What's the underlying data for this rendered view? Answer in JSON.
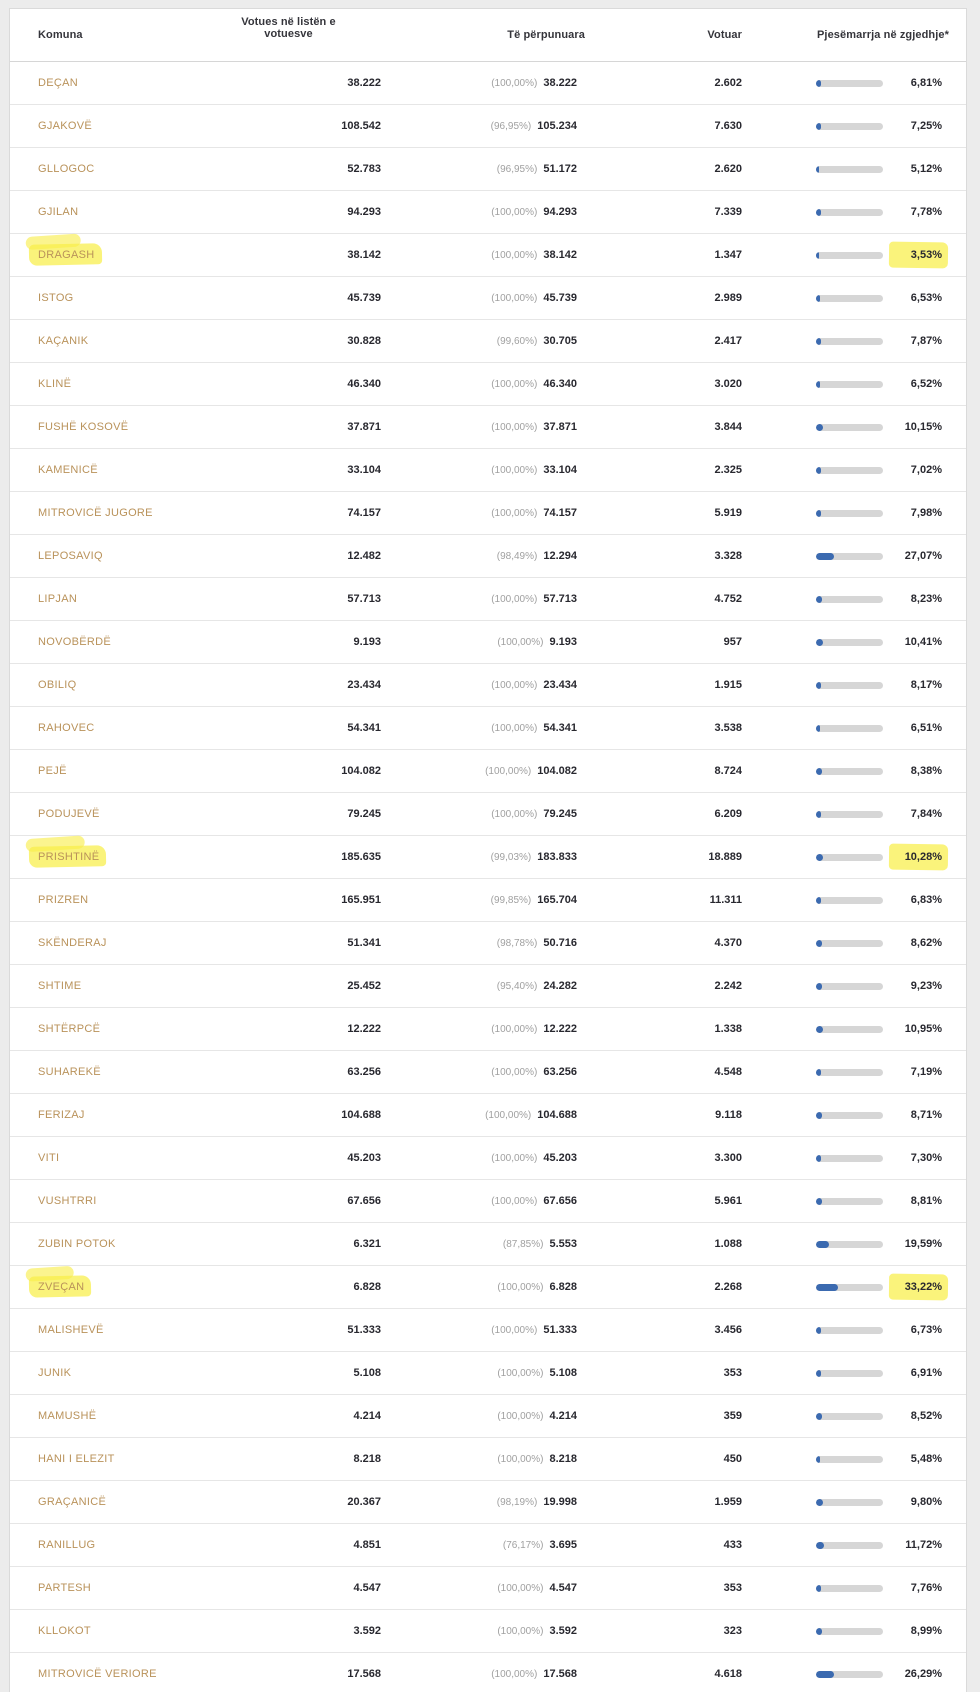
{
  "table": {
    "header": {
      "komuna": "Komuna",
      "votues": "Votues në listën e votuesve",
      "perpunuara": "Të përpunuara",
      "votuar": "Votuar",
      "pjesemarrja": "Pjesëmarrja në zgjedhje*"
    },
    "rows": [
      {
        "komuna": "DEÇAN",
        "votues": "38.222",
        "perpunuara_pct": "(100,00%)",
        "perpunuara": "38.222",
        "votuar": "2.602",
        "pjesemarrja": "6,81%",
        "pjesemarrja_value": 6.81,
        "highlight": false
      },
      {
        "komuna": "GJAKOVË",
        "votues": "108.542",
        "perpunuara_pct": "(96,95%)",
        "perpunuara": "105.234",
        "votuar": "7.630",
        "pjesemarrja": "7,25%",
        "pjesemarrja_value": 7.25,
        "highlight": false
      },
      {
        "komuna": "GLLOGOC",
        "votues": "52.783",
        "perpunuara_pct": "(96,95%)",
        "perpunuara": "51.172",
        "votuar": "2.620",
        "pjesemarrja": "5,12%",
        "pjesemarrja_value": 5.12,
        "highlight": false
      },
      {
        "komuna": "GJILAN",
        "votues": "94.293",
        "perpunuara_pct": "(100,00%)",
        "perpunuara": "94.293",
        "votuar": "7.339",
        "pjesemarrja": "7,78%",
        "pjesemarrja_value": 7.78,
        "highlight": false
      },
      {
        "komuna": "DRAGASH",
        "votues": "38.142",
        "perpunuara_pct": "(100,00%)",
        "perpunuara": "38.142",
        "votuar": "1.347",
        "pjesemarrja": "3,53%",
        "pjesemarrja_value": 3.53,
        "highlight": true
      },
      {
        "komuna": "ISTOG",
        "votues": "45.739",
        "perpunuara_pct": "(100,00%)",
        "perpunuara": "45.739",
        "votuar": "2.989",
        "pjesemarrja": "6,53%",
        "pjesemarrja_value": 6.53,
        "highlight": false
      },
      {
        "komuna": "KAÇANIK",
        "votues": "30.828",
        "perpunuara_pct": "(99,60%)",
        "perpunuara": "30.705",
        "votuar": "2.417",
        "pjesemarrja": "7,87%",
        "pjesemarrja_value": 7.87,
        "highlight": false
      },
      {
        "komuna": "KLINË",
        "votues": "46.340",
        "perpunuara_pct": "(100,00%)",
        "perpunuara": "46.340",
        "votuar": "3.020",
        "pjesemarrja": "6,52%",
        "pjesemarrja_value": 6.52,
        "highlight": false
      },
      {
        "komuna": "FUSHË KOSOVË",
        "votues": "37.871",
        "perpunuara_pct": "(100,00%)",
        "perpunuara": "37.871",
        "votuar": "3.844",
        "pjesemarrja": "10,15%",
        "pjesemarrja_value": 10.15,
        "highlight": false
      },
      {
        "komuna": "KAMENICË",
        "votues": "33.104",
        "perpunuara_pct": "(100,00%)",
        "perpunuara": "33.104",
        "votuar": "2.325",
        "pjesemarrja": "7,02%",
        "pjesemarrja_value": 7.02,
        "highlight": false
      },
      {
        "komuna": "MITROVICË JUGORE",
        "votues": "74.157",
        "perpunuara_pct": "(100,00%)",
        "perpunuara": "74.157",
        "votuar": "5.919",
        "pjesemarrja": "7,98%",
        "pjesemarrja_value": 7.98,
        "highlight": false
      },
      {
        "komuna": "LEPOSAVIQ",
        "votues": "12.482",
        "perpunuara_pct": "(98,49%)",
        "perpunuara": "12.294",
        "votuar": "3.328",
        "pjesemarrja": "27,07%",
        "pjesemarrja_value": 27.07,
        "highlight": false
      },
      {
        "komuna": "LIPJAN",
        "votues": "57.713",
        "perpunuara_pct": "(100,00%)",
        "perpunuara": "57.713",
        "votuar": "4.752",
        "pjesemarrja": "8,23%",
        "pjesemarrja_value": 8.23,
        "highlight": false
      },
      {
        "komuna": "NOVOBËRDË",
        "votues": "9.193",
        "perpunuara_pct": "(100,00%)",
        "perpunuara": "9.193",
        "votuar": "957",
        "pjesemarrja": "10,41%",
        "pjesemarrja_value": 10.41,
        "highlight": false
      },
      {
        "komuna": "OBILIQ",
        "votues": "23.434",
        "perpunuara_pct": "(100,00%)",
        "perpunuara": "23.434",
        "votuar": "1.915",
        "pjesemarrja": "8,17%",
        "pjesemarrja_value": 8.17,
        "highlight": false
      },
      {
        "komuna": "RAHOVEC",
        "votues": "54.341",
        "perpunuara_pct": "(100,00%)",
        "perpunuara": "54.341",
        "votuar": "3.538",
        "pjesemarrja": "6,51%",
        "pjesemarrja_value": 6.51,
        "highlight": false
      },
      {
        "komuna": "PEJË",
        "votues": "104.082",
        "perpunuara_pct": "(100,00%)",
        "perpunuara": "104.082",
        "votuar": "8.724",
        "pjesemarrja": "8,38%",
        "pjesemarrja_value": 8.38,
        "highlight": false
      },
      {
        "komuna": "PODUJEVË",
        "votues": "79.245",
        "perpunuara_pct": "(100,00%)",
        "perpunuara": "79.245",
        "votuar": "6.209",
        "pjesemarrja": "7,84%",
        "pjesemarrja_value": 7.84,
        "highlight": false
      },
      {
        "komuna": "PRISHTINË",
        "votues": "185.635",
        "perpunuara_pct": "(99,03%)",
        "perpunuara": "183.833",
        "votuar": "18.889",
        "pjesemarrja": "10,28%",
        "pjesemarrja_value": 10.28,
        "highlight": true
      },
      {
        "komuna": "PRIZREN",
        "votues": "165.951",
        "perpunuara_pct": "(99,85%)",
        "perpunuara": "165.704",
        "votuar": "11.311",
        "pjesemarrja": "6,83%",
        "pjesemarrja_value": 6.83,
        "highlight": false
      },
      {
        "komuna": "SKËNDERAJ",
        "votues": "51.341",
        "perpunuara_pct": "(98,78%)",
        "perpunuara": "50.716",
        "votuar": "4.370",
        "pjesemarrja": "8,62%",
        "pjesemarrja_value": 8.62,
        "highlight": false
      },
      {
        "komuna": "SHTIME",
        "votues": "25.452",
        "perpunuara_pct": "(95,40%)",
        "perpunuara": "24.282",
        "votuar": "2.242",
        "pjesemarrja": "9,23%",
        "pjesemarrja_value": 9.23,
        "highlight": false
      },
      {
        "komuna": "SHTËRPCË",
        "votues": "12.222",
        "perpunuara_pct": "(100,00%)",
        "perpunuara": "12.222",
        "votuar": "1.338",
        "pjesemarrja": "10,95%",
        "pjesemarrja_value": 10.95,
        "highlight": false
      },
      {
        "komuna": "SUHAREKË",
        "votues": "63.256",
        "perpunuara_pct": "(100,00%)",
        "perpunuara": "63.256",
        "votuar": "4.548",
        "pjesemarrja": "7,19%",
        "pjesemarrja_value": 7.19,
        "highlight": false
      },
      {
        "komuna": "FERIZAJ",
        "votues": "104.688",
        "perpunuara_pct": "(100,00%)",
        "perpunuara": "104.688",
        "votuar": "9.118",
        "pjesemarrja": "8,71%",
        "pjesemarrja_value": 8.71,
        "highlight": false
      },
      {
        "komuna": "VITI",
        "votues": "45.203",
        "perpunuara_pct": "(100,00%)",
        "perpunuara": "45.203",
        "votuar": "3.300",
        "pjesemarrja": "7,30%",
        "pjesemarrja_value": 7.3,
        "highlight": false
      },
      {
        "komuna": "VUSHTRRI",
        "votues": "67.656",
        "perpunuara_pct": "(100,00%)",
        "perpunuara": "67.656",
        "votuar": "5.961",
        "pjesemarrja": "8,81%",
        "pjesemarrja_value": 8.81,
        "highlight": false
      },
      {
        "komuna": "ZUBIN POTOK",
        "votues": "6.321",
        "perpunuara_pct": "(87,85%)",
        "perpunuara": "5.553",
        "votuar": "1.088",
        "pjesemarrja": "19,59%",
        "pjesemarrja_value": 19.59,
        "highlight": false
      },
      {
        "komuna": "ZVEÇAN",
        "votues": "6.828",
        "perpunuara_pct": "(100,00%)",
        "perpunuara": "6.828",
        "votuar": "2.268",
        "pjesemarrja": "33,22%",
        "pjesemarrja_value": 33.22,
        "highlight": true
      },
      {
        "komuna": "MALISHEVË",
        "votues": "51.333",
        "perpunuara_pct": "(100,00%)",
        "perpunuara": "51.333",
        "votuar": "3.456",
        "pjesemarrja": "6,73%",
        "pjesemarrja_value": 6.73,
        "highlight": false
      },
      {
        "komuna": "JUNIK",
        "votues": "5.108",
        "perpunuara_pct": "(100,00%)",
        "perpunuara": "5.108",
        "votuar": "353",
        "pjesemarrja": "6,91%",
        "pjesemarrja_value": 6.91,
        "highlight": false
      },
      {
        "komuna": "MAMUSHË",
        "votues": "4.214",
        "perpunuara_pct": "(100,00%)",
        "perpunuara": "4.214",
        "votuar": "359",
        "pjesemarrja": "8,52%",
        "pjesemarrja_value": 8.52,
        "highlight": false
      },
      {
        "komuna": "HANI I ELEZIT",
        "votues": "8.218",
        "perpunuara_pct": "(100,00%)",
        "perpunuara": "8.218",
        "votuar": "450",
        "pjesemarrja": "5,48%",
        "pjesemarrja_value": 5.48,
        "highlight": false
      },
      {
        "komuna": "GRAÇANICË",
        "votues": "20.367",
        "perpunuara_pct": "(98,19%)",
        "perpunuara": "19.998",
        "votuar": "1.959",
        "pjesemarrja": "9,80%",
        "pjesemarrja_value": 9.8,
        "highlight": false
      },
      {
        "komuna": "RANILLUG",
        "votues": "4.851",
        "perpunuara_pct": "(76,17%)",
        "perpunuara": "3.695",
        "votuar": "433",
        "pjesemarrja": "11,72%",
        "pjesemarrja_value": 11.72,
        "highlight": false
      },
      {
        "komuna": "PARTESH",
        "votues": "4.547",
        "perpunuara_pct": "(100,00%)",
        "perpunuara": "4.547",
        "votuar": "353",
        "pjesemarrja": "7,76%",
        "pjesemarrja_value": 7.76,
        "highlight": false
      },
      {
        "komuna": "KLLOKOT",
        "votues": "3.592",
        "perpunuara_pct": "(100,00%)",
        "perpunuara": "3.592",
        "votuar": "323",
        "pjesemarrja": "8,99%",
        "pjesemarrja_value": 8.99,
        "highlight": false
      },
      {
        "komuna": "MITROVICË VERIORE",
        "votues": "17.568",
        "perpunuara_pct": "(100,00%)",
        "perpunuara": "17.568",
        "votuar": "4.618",
        "pjesemarrja": "26,29%",
        "pjesemarrja_value": 26.29,
        "highlight": false
      }
    ]
  },
  "colors": {
    "bar_fill_blue": "#3b6ab0",
    "bar_track_gray": "#d6d6d6",
    "municipality_gold": "#b9925a",
    "highlight_yellow": "#f8ee48",
    "page_background": "#ececec"
  }
}
